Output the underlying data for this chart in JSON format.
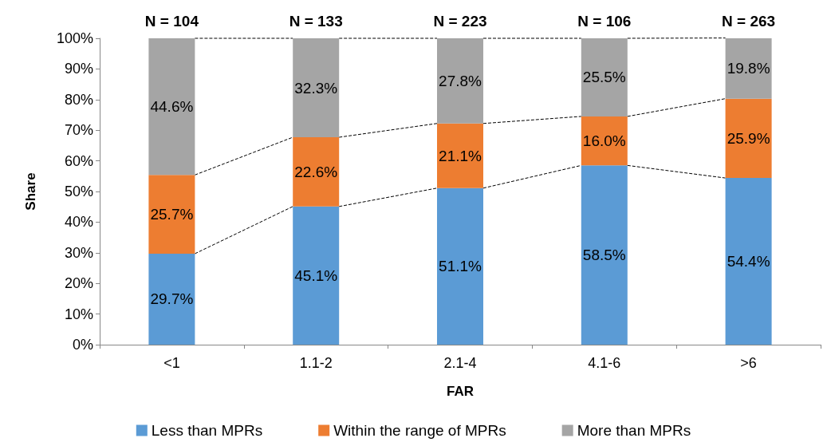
{
  "chart_data": {
    "type": "bar",
    "stacked": true,
    "xlabel": "FAR",
    "ylabel": "Share",
    "categories": [
      "<1",
      "1.1-2",
      "2.1-4",
      "4.1-6",
      ">6"
    ],
    "series": [
      {
        "name": "Less than MPRs",
        "color": "#5b9bd5",
        "values": [
          29.7,
          45.1,
          51.1,
          58.5,
          54.4
        ],
        "value_labels": [
          "29.7%",
          "45.1%",
          "51.1%",
          "58.5%",
          "54.4%"
        ]
      },
      {
        "name": "Within the range of MPRs",
        "color": "#ed7d31",
        "values": [
          25.7,
          22.6,
          21.1,
          16.0,
          25.9
        ],
        "value_labels": [
          "25.7%",
          "22.6%",
          "21.1%",
          "16.0%",
          "25.9%"
        ]
      },
      {
        "name": "More than MPRs",
        "color": "#a5a5a5",
        "values": [
          44.6,
          32.3,
          27.8,
          25.5,
          19.8
        ],
        "value_labels": [
          "44.6%",
          "32.3%",
          "27.8%",
          "25.5%",
          "19.8%"
        ]
      }
    ],
    "ylim": [
      0,
      100
    ],
    "yticks": [
      {
        "value": 0,
        "label": "0%"
      },
      {
        "value": 10,
        "label": "10%"
      },
      {
        "value": 20,
        "label": "20%"
      },
      {
        "value": 30,
        "label": "30%"
      },
      {
        "value": 40,
        "label": "40%"
      },
      {
        "value": 50,
        "label": "50%"
      },
      {
        "value": 60,
        "label": "60%"
      },
      {
        "value": 70,
        "label": "70%"
      },
      {
        "value": 80,
        "label": "80%"
      },
      {
        "value": 90,
        "label": "90%"
      },
      {
        "value": 100,
        "label": "100%"
      }
    ],
    "annotations": [
      "N = 104",
      "N = 133",
      "N = 223",
      "N = 106",
      "N = 263"
    ],
    "grid": false,
    "legend": "bottom",
    "line_style": "dashed"
  }
}
